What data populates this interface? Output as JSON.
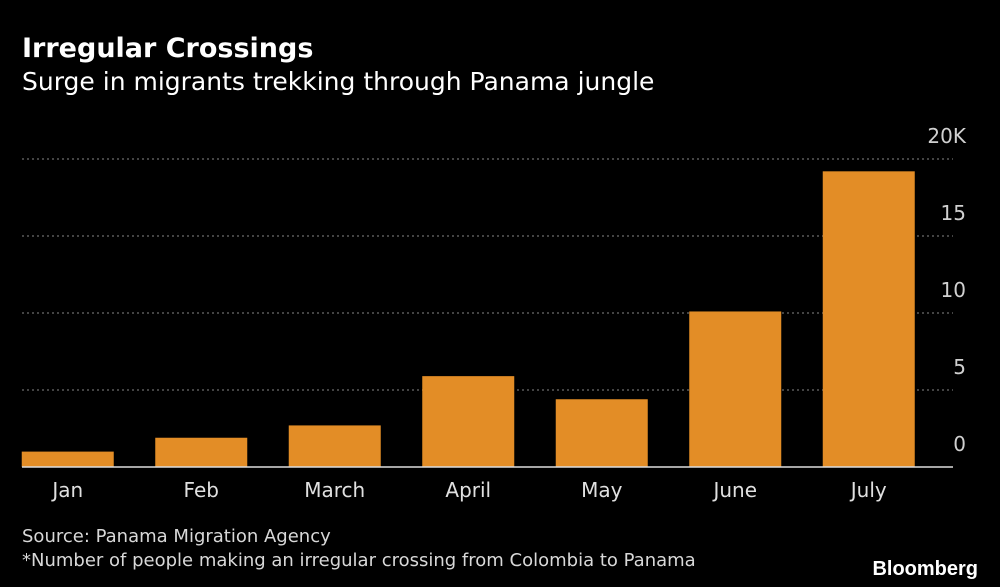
{
  "chart_data": {
    "type": "bar",
    "title": "Irregular Crossings",
    "subtitle": "Surge in migrants trekking through Panama jungle",
    "categories": [
      "Jan",
      "Feb",
      "March",
      "April",
      "May",
      "June",
      "July"
    ],
    "values": [
      1.0,
      1.9,
      2.7,
      5.9,
      4.4,
      10.1,
      19.2
    ],
    "color": "#e38d26",
    "ylim": [
      0,
      20
    ],
    "yticks": [
      0,
      5,
      10,
      15,
      {
        "value": 20,
        "label": "20K"
      }
    ],
    "grid": true,
    "source": "Source: Panama Migration Agency",
    "note": "*Number of people making an irregular crossing from Colombia to Panama",
    "brand": "Bloomberg"
  }
}
